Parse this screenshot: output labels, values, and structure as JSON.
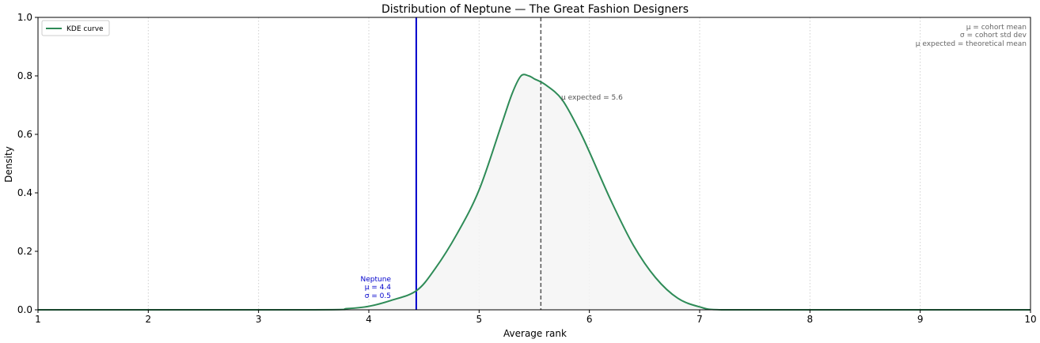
{
  "chart_data": {
    "type": "line",
    "title": "Distribution of Neptune — The Great Fashion Designers",
    "xlabel": "Average rank",
    "ylabel": "Density",
    "xlim": [
      1,
      10
    ],
    "ylim": [
      0,
      1.0
    ],
    "x_ticks": [
      "1",
      "2",
      "3",
      "4",
      "5",
      "6",
      "7",
      "8",
      "9",
      "10"
    ],
    "y_ticks": [
      "0.0",
      "0.2",
      "0.4",
      "0.6",
      "0.8",
      "1.0"
    ],
    "grid": "vertical-dotted",
    "legend": {
      "placement": "top-left",
      "entries": [
        "KDE curve"
      ]
    },
    "series": [
      {
        "name": "KDE curve",
        "color": "#2e8b57",
        "x": [
          1.0,
          3.5,
          3.8,
          4.0,
          4.2,
          4.43,
          4.6,
          4.8,
          5.0,
          5.2,
          5.3,
          5.38,
          5.45,
          5.5,
          5.6,
          5.75,
          5.9,
          6.0,
          6.2,
          6.4,
          6.6,
          6.8,
          7.0,
          7.2,
          8.0,
          10.0
        ],
        "y": [
          0.0,
          0.0,
          0.004,
          0.012,
          0.032,
          0.065,
          0.14,
          0.26,
          0.41,
          0.63,
          0.74,
          0.8,
          0.8,
          0.79,
          0.77,
          0.72,
          0.62,
          0.54,
          0.37,
          0.22,
          0.11,
          0.04,
          0.01,
          0.0,
          0.0,
          0.0
        ]
      }
    ],
    "vlines": [
      {
        "x": 4.43,
        "style": "solid",
        "color": "#0000cc"
      },
      {
        "x": 5.56,
        "style": "dashed",
        "color": "#555555"
      }
    ],
    "annotations": {
      "cohort": {
        "name": "Neptune",
        "mu": "μ = 4.4",
        "sigma": "σ = 0.5",
        "color": "#0000cc"
      },
      "expected": "μ expected = 5.6",
      "key": [
        "μ = cohort mean",
        "σ = cohort std dev",
        "μ expected = theoretical mean"
      ]
    }
  }
}
